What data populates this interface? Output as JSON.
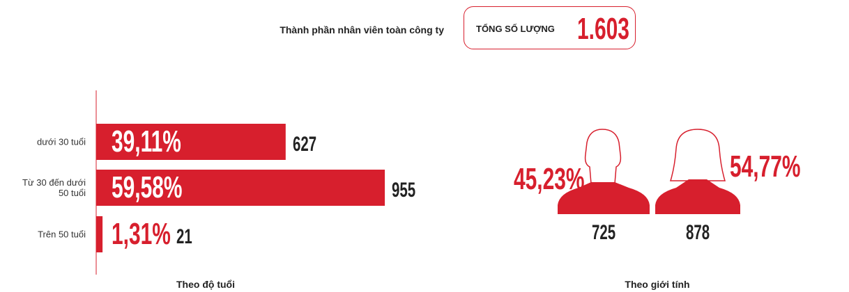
{
  "header": {
    "title": "Thành phần nhân viên toàn công ty",
    "total_label": "TỔNG SỐ LƯỢNG",
    "total": {
      "value": 1603,
      "label": "1.603"
    }
  },
  "chart_data": [
    {
      "type": "bar",
      "orientation": "horizontal",
      "title": "Theo độ tuổi",
      "categories": [
        "dưới 30 tuổi",
        "Từ 30 đến dưới 50 tuổi",
        "Trên 50 tuổi"
      ],
      "values": [
        39.11,
        59.58,
        1.31
      ],
      "value_labels": [
        "39,11%",
        "59,58%",
        "1,31%"
      ],
      "counts": [
        627,
        955,
        21
      ],
      "color": "#d71f2d"
    },
    {
      "type": "pictogram",
      "title": "Theo giới tính",
      "values": [
        45.23,
        54.77
      ],
      "value_labels": [
        "45,23%",
        "54,77%"
      ],
      "counts": [
        725,
        878
      ],
      "color": "#d71f2d"
    }
  ]
}
